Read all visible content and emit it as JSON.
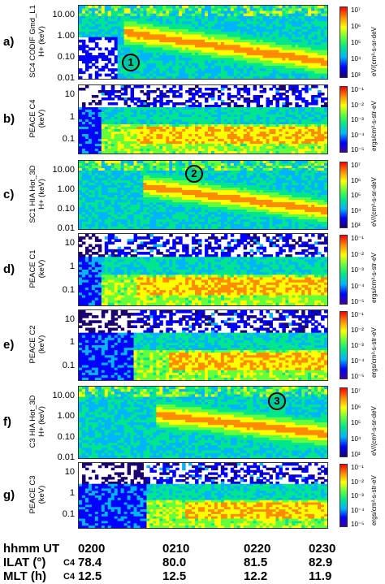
{
  "panels": [
    {
      "id": "a",
      "label": "a)",
      "ylabel_1": "SC4 CODIF Gmd_L1",
      "ylabel_2": "H+ (keV)",
      "ticks": [
        "10.00",
        "1.00",
        "0.10",
        "0.01"
      ],
      "cbar": {
        "ticks": [
          "10⁷",
          "10⁶",
          "10⁵",
          "10⁴",
          "10³"
        ],
        "unit": "eV/(cm²-s-sr-deV"
      },
      "annotation": "1",
      "kind": "hia"
    },
    {
      "id": "b",
      "label": "b)",
      "ylabel_1": "PEACE C4",
      "ylabel_2": "(keV)",
      "ticks": [
        "10",
        "1",
        "0.1"
      ],
      "cbar": {
        "ticks": [
          "10⁻¹",
          "10⁻²",
          "10⁻³",
          "10⁻⁴",
          "10⁻⁵"
        ],
        "unit": "ergs/cm²-s-str-eV"
      },
      "kind": "peace"
    },
    {
      "id": "c",
      "label": "c)",
      "ylabel_1": "SC1 HIA Hot_3D",
      "ylabel_2": "H+ (keV)",
      "ticks": [
        "10.00",
        "1.00",
        "0.10",
        "0.01"
      ],
      "cbar": {
        "ticks": [
          "10⁷",
          "10⁶",
          "10⁵",
          "10⁴",
          "10³"
        ],
        "unit": "eV/(cm²-s-sr-deV"
      },
      "annotation": "2",
      "kind": "hia"
    },
    {
      "id": "d",
      "label": "d)",
      "ylabel_1": "PEACE C1",
      "ylabel_2": "(keV)",
      "ticks": [
        "10",
        "1",
        "0.1"
      ],
      "cbar": {
        "ticks": [
          "10⁻¹",
          "10⁻²",
          "10⁻³",
          "10⁻⁴",
          "10⁻⁵"
        ],
        "unit": "ergs/cm²-s-str-eV"
      },
      "kind": "peace"
    },
    {
      "id": "e",
      "label": "e)",
      "ylabel_1": "PEACE C2",
      "ylabel_2": "(keV)",
      "ticks": [
        "10",
        "1",
        "0.1"
      ],
      "cbar": {
        "ticks": [
          "10⁻¹",
          "10⁻²",
          "10⁻³",
          "10⁻⁴",
          "10⁻⁵"
        ],
        "unit": "ergs/cm²-s-str-eV"
      },
      "kind": "peace"
    },
    {
      "id": "f",
      "label": "f)",
      "ylabel_1": "C3 HIA Hot_3D",
      "ylabel_2": "H+ (keV)",
      "ticks": [
        "10.00",
        "1.00",
        "0.10",
        "0.01"
      ],
      "cbar": {
        "ticks": [
          "10⁷",
          "10⁶",
          "10⁵",
          "10⁴",
          "10³"
        ],
        "unit": "eV/(cm²-s-sr-deV"
      },
      "annotation": "3",
      "kind": "hia"
    },
    {
      "id": "g",
      "label": "g)",
      "ylabel_1": "PEACE C3",
      "ylabel_2": "(keV)",
      "ticks": [
        "10",
        "1",
        "0.1"
      ],
      "cbar": {
        "ticks": [
          "10⁻¹",
          "10⁻²",
          "10⁻³",
          "10⁻⁴",
          "10⁻⁵"
        ],
        "unit": "ergs/cm²-s-str-eV"
      },
      "kind": "peace"
    }
  ],
  "footer": {
    "rows": [
      {
        "label": "hhmm UT",
        "sc": "",
        "values": [
          "0200",
          "0210",
          "0220",
          "0230"
        ]
      },
      {
        "label": "ILAT (°)",
        "sc": "C4",
        "values": [
          "78.4",
          "80.0",
          "81.5",
          "82.9"
        ]
      },
      {
        "label": "MLT (h)",
        "sc": "C4",
        "values": [
          "12.5",
          "12.5",
          "12.2",
          "11.9"
        ]
      }
    ]
  },
  "chart_data": {
    "type": "heatmap",
    "x_axis": {
      "label": "hhmm UT",
      "ticks": [
        "0200",
        "0210",
        "0220",
        "0230"
      ]
    },
    "panels": [
      "SC4 CODIF Gmd_L1 H+",
      "PEACE C4",
      "SC1 HIA Hot_3D H+",
      "PEACE C1",
      "PEACE C2",
      "C3 HIA Hot_3D H+",
      "PEACE C3"
    ],
    "colormap": [
      "#1a0070",
      "#0000ff",
      "#00b4ff",
      "#00e68c",
      "#64ff3c",
      "#ffff00",
      "#ff8c00",
      "#ff0000"
    ]
  }
}
